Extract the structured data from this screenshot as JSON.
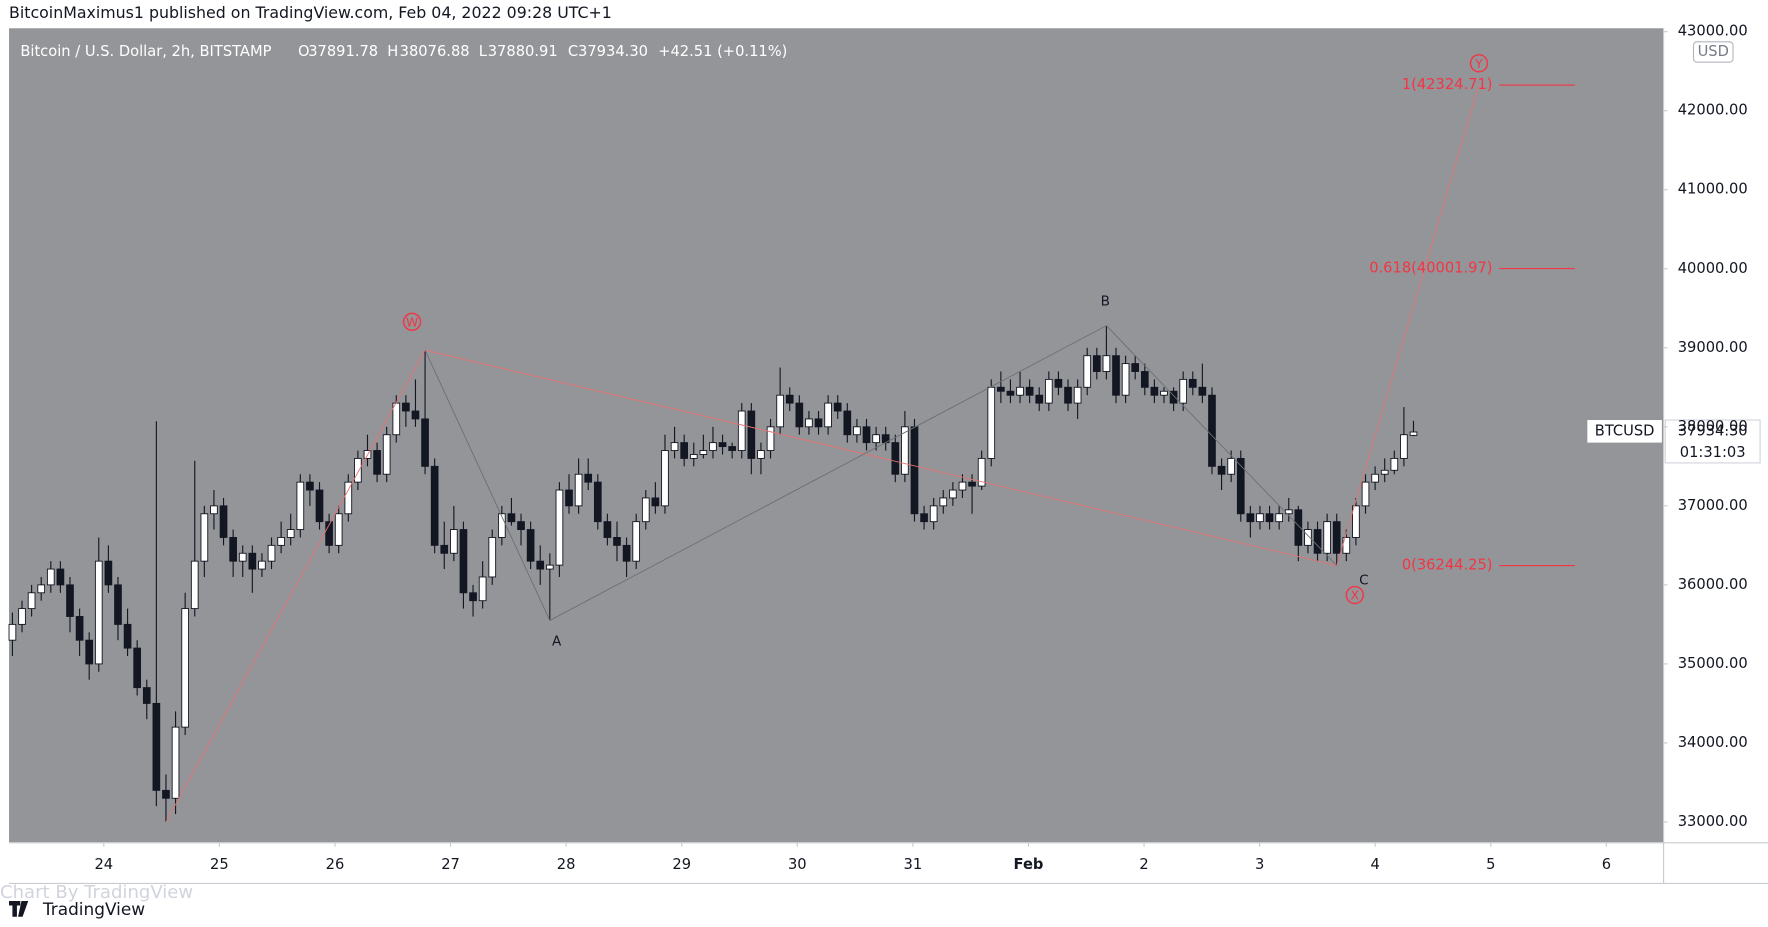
{
  "publish_line": "BitcoinMaximus1 published on TradingView.com, Feb 04, 2022 09:28 UTC+1",
  "header": {
    "symbol": "Bitcoin / U.S. Dollar, 2h, BITSTAMP",
    "o": "O",
    "open": "37891.78",
    "h": "H",
    "high": "38076.88",
    "l": "L",
    "low": "37880.91",
    "c": "C",
    "close": "37934.30",
    "change": "+42.51 (+0.11%)"
  },
  "currency_button": "USD",
  "price_tag": {
    "symbol": "BTCUSD",
    "price": "37934.30",
    "countdown": "01:31:03"
  },
  "footer": {
    "watermark": "Chart By TradingView",
    "brand": "TradingView"
  },
  "chart_data": {
    "type": "candlestick",
    "up_color": "#ffffff",
    "down_color": "#131722",
    "wick_color": "#131722",
    "grid": false,
    "ylim": [
      32743,
      43043
    ],
    "yticks": [
      {
        "value": 33000,
        "label": "33000.00"
      },
      {
        "value": 34000,
        "label": "34000.00"
      },
      {
        "value": 35000,
        "label": "35000.00"
      },
      {
        "value": 36000,
        "label": "36000.00"
      },
      {
        "value": 37000,
        "label": "37000.00"
      },
      {
        "value": 38000,
        "label": "38000.00"
      },
      {
        "value": 39000,
        "label": "39000.00"
      },
      {
        "value": 40000,
        "label": "40000.00"
      },
      {
        "value": 41000,
        "label": "41000.00"
      },
      {
        "value": 42000,
        "label": "42000.00"
      },
      {
        "value": 43000,
        "label": "43000.00"
      }
    ],
    "xlim": [
      23.18,
      37.49
    ],
    "xticks": [
      24,
      25,
      26,
      27,
      28,
      29,
      30,
      31,
      {
        "value": 32,
        "label": "Feb"
      },
      {
        "value": 33,
        "label": "2"
      },
      {
        "value": 34,
        "label": "3"
      },
      {
        "value": 35,
        "label": "4"
      },
      {
        "value": 36,
        "label": "5"
      },
      {
        "value": 37,
        "label": "6"
      }
    ],
    "wave_labels": [
      "W",
      "A",
      "B",
      "C",
      "X",
      "Y"
    ],
    "fib_levels": [
      {
        "value": 42324.71,
        "label": "1(42324.71)"
      },
      {
        "value": 40001.97,
        "label": "0.618(40001.97)"
      },
      {
        "value": 36244.25,
        "label": "0(36244.25)"
      }
    ],
    "candles": [
      [
        35300,
        35650,
        35100,
        35500
      ],
      [
        35500,
        35800,
        35400,
        35700
      ],
      [
        35700,
        36000,
        35600,
        35900
      ],
      [
        35900,
        36100,
        35800,
        36000
      ],
      [
        36000,
        36300,
        35900,
        36200
      ],
      [
        36200,
        36300,
        35900,
        36000
      ],
      [
        36000,
        36100,
        35400,
        35600
      ],
      [
        35600,
        35700,
        35100,
        35300
      ],
      [
        35300,
        35400,
        34800,
        35000
      ],
      [
        35000,
        36600,
        34900,
        36300
      ],
      [
        36300,
        36500,
        35900,
        36000
      ],
      [
        36000,
        36100,
        35300,
        35500
      ],
      [
        35500,
        35700,
        35100,
        35200
      ],
      [
        35200,
        35300,
        34600,
        34700
      ],
      [
        34700,
        34800,
        34300,
        34500
      ],
      [
        34500,
        38070,
        33200,
        33400
      ],
      [
        33400,
        33600,
        33000,
        33300
      ],
      [
        33300,
        34400,
        33100,
        34200
      ],
      [
        34200,
        35900,
        34100,
        35700
      ],
      [
        35700,
        37570,
        35600,
        36300
      ],
      [
        36300,
        37000,
        36100,
        36900
      ],
      [
        36900,
        37200,
        36700,
        37000
      ],
      [
        37000,
        37100,
        36500,
        36600
      ],
      [
        36600,
        36700,
        36100,
        36300
      ],
      [
        36300,
        36500,
        36100,
        36400
      ],
      [
        36400,
        36500,
        35900,
        36200
      ],
      [
        36200,
        36400,
        36100,
        36300
      ],
      [
        36300,
        36600,
        36200,
        36500
      ],
      [
        36500,
        36800,
        36400,
        36600
      ],
      [
        36600,
        36900,
        36500,
        36700
      ],
      [
        36700,
        37400,
        36600,
        37300
      ],
      [
        37300,
        37400,
        37000,
        37200
      ],
      [
        37200,
        37300,
        36700,
        36800
      ],
      [
        36800,
        36900,
        36400,
        36500
      ],
      [
        36500,
        37000,
        36400,
        36900
      ],
      [
        36900,
        37400,
        36800,
        37300
      ],
      [
        37300,
        37700,
        37200,
        37600
      ],
      [
        37600,
        37900,
        37500,
        37700
      ],
      [
        37700,
        37800,
        37300,
        37400
      ],
      [
        37400,
        38000,
        37300,
        37900
      ],
      [
        37900,
        38400,
        37800,
        38300
      ],
      [
        38300,
        38400,
        38000,
        38200
      ],
      [
        38200,
        38600,
        38000,
        38100
      ],
      [
        38100,
        38970,
        37400,
        37500
      ],
      [
        37500,
        37600,
        36400,
        36500
      ],
      [
        36500,
        36800,
        36200,
        36400
      ],
      [
        36400,
        37000,
        36300,
        36700
      ],
      [
        36700,
        36800,
        35700,
        35900
      ],
      [
        35900,
        36000,
        35600,
        35800
      ],
      [
        35800,
        36300,
        35700,
        36100
      ],
      [
        36100,
        36700,
        36000,
        36600
      ],
      [
        36600,
        37000,
        36500,
        36900
      ],
      [
        36900,
        37100,
        36750,
        36800
      ],
      [
        36800,
        36900,
        36500,
        36700
      ],
      [
        36700,
        36800,
        36200,
        36300
      ],
      [
        36300,
        36500,
        36000,
        36200
      ],
      [
        36200,
        36400,
        35550,
        36250
      ],
      [
        36250,
        37300,
        36100,
        37200
      ],
      [
        37200,
        37400,
        36900,
        37000
      ],
      [
        37000,
        37600,
        36900,
        37400
      ],
      [
        37400,
        37600,
        37200,
        37300
      ],
      [
        37300,
        37400,
        36700,
        36800
      ],
      [
        36800,
        36900,
        36500,
        36600
      ],
      [
        36600,
        36800,
        36300,
        36500
      ],
      [
        36500,
        36600,
        36100,
        36300
      ],
      [
        36300,
        36900,
        36200,
        36800
      ],
      [
        36800,
        37200,
        36700,
        37100
      ],
      [
        37100,
        37300,
        36900,
        37000
      ],
      [
        37000,
        37900,
        36900,
        37700
      ],
      [
        37700,
        38000,
        37600,
        37800
      ],
      [
        37800,
        37900,
        37500,
        37600
      ],
      [
        37600,
        37800,
        37500,
        37650
      ],
      [
        37650,
        37900,
        37600,
        37700
      ],
      [
        37700,
        38000,
        37600,
        37800
      ],
      [
        37800,
        37900,
        37650,
        37750
      ],
      [
        37750,
        37800,
        37600,
        37700
      ],
      [
        37700,
        38300,
        37600,
        38200
      ],
      [
        38200,
        38300,
        37400,
        37600
      ],
      [
        37600,
        37800,
        37400,
        37700
      ],
      [
        37700,
        38100,
        37600,
        38000
      ],
      [
        38000,
        38750,
        37900,
        38400
      ],
      [
        38400,
        38500,
        38200,
        38300
      ],
      [
        38300,
        38400,
        37900,
        38000
      ],
      [
        38000,
        38200,
        37900,
        38100
      ],
      [
        38100,
        38200,
        37900,
        38000
      ],
      [
        38000,
        38400,
        37900,
        38300
      ],
      [
        38300,
        38400,
        38100,
        38200
      ],
      [
        38200,
        38300,
        37800,
        37900
      ],
      [
        37900,
        38100,
        37800,
        38000
      ],
      [
        38000,
        38100,
        37700,
        37800
      ],
      [
        37800,
        38000,
        37700,
        37900
      ],
      [
        37900,
        38000,
        37700,
        37800
      ],
      [
        37800,
        37900,
        37300,
        37400
      ],
      [
        37400,
        38200,
        37300,
        38000
      ],
      [
        38000,
        38100,
        36800,
        36900
      ],
      [
        36900,
        37000,
        36700,
        36800
      ],
      [
        36800,
        37100,
        36700,
        37000
      ],
      [
        37000,
        37200,
        36900,
        37100
      ],
      [
        37100,
        37300,
        37000,
        37200
      ],
      [
        37200,
        37400,
        37100,
        37300
      ],
      [
        37300,
        37400,
        36900,
        37250
      ],
      [
        37250,
        37700,
        37200,
        37600
      ],
      [
        37600,
        38600,
        37500,
        38500
      ],
      [
        38500,
        38700,
        38300,
        38450
      ],
      [
        38450,
        38600,
        38300,
        38400
      ],
      [
        38400,
        38700,
        38300,
        38500
      ],
      [
        38500,
        38600,
        38300,
        38400
      ],
      [
        38400,
        38500,
        38200,
        38300
      ],
      [
        38300,
        38700,
        38200,
        38600
      ],
      [
        38600,
        38700,
        38400,
        38500
      ],
      [
        38500,
        38600,
        38200,
        38300
      ],
      [
        38300,
        38600,
        38100,
        38500
      ],
      [
        38500,
        39000,
        38400,
        38900
      ],
      [
        38900,
        39000,
        38600,
        38700
      ],
      [
        38700,
        39280,
        38600,
        38900
      ],
      [
        38900,
        39000,
        38300,
        38400
      ],
      [
        38400,
        38900,
        38300,
        38800
      ],
      [
        38800,
        38900,
        38600,
        38700
      ],
      [
        38700,
        38800,
        38400,
        38500
      ],
      [
        38500,
        38600,
        38300,
        38400
      ],
      [
        38400,
        38500,
        38300,
        38450
      ],
      [
        38450,
        38500,
        38200,
        38300
      ],
      [
        38300,
        38700,
        38200,
        38600
      ],
      [
        38600,
        38700,
        38400,
        38500
      ],
      [
        38500,
        38800,
        38300,
        38400
      ],
      [
        38400,
        38500,
        37400,
        37500
      ],
      [
        37500,
        37600,
        37200,
        37400
      ],
      [
        37400,
        37700,
        37300,
        37600
      ],
      [
        37600,
        37700,
        36800,
        36900
      ],
      [
        36900,
        37000,
        36600,
        36800
      ],
      [
        36800,
        37000,
        36700,
        36900
      ],
      [
        36900,
        37000,
        36700,
        36800
      ],
      [
        36800,
        37000,
        36700,
        36900
      ],
      [
        36900,
        37100,
        36800,
        36950
      ],
      [
        36950,
        37000,
        36300,
        36500
      ],
      [
        36500,
        36800,
        36400,
        36700
      ],
      [
        36700,
        36800,
        36300,
        36400
      ],
      [
        36400,
        36900,
        36300,
        36800
      ],
      [
        36800,
        36900,
        36244.25,
        36400
      ],
      [
        36400,
        36700,
        36300,
        36600
      ],
      [
        36600,
        37100,
        36500,
        37000
      ],
      [
        37000,
        37400,
        36900,
        37300
      ],
      [
        37300,
        37500,
        37200,
        37400
      ],
      [
        37400,
        37600,
        37300,
        37450
      ],
      [
        37450,
        37700,
        37400,
        37600
      ],
      [
        37600,
        38250,
        37500,
        37900
      ],
      [
        37891.78,
        38076.88,
        37880.91,
        37934.3
      ]
    ]
  }
}
